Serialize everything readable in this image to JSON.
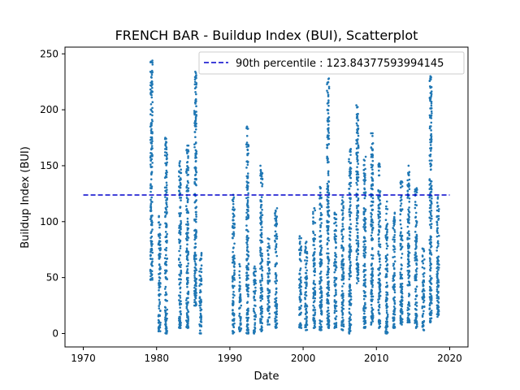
{
  "chart_data": {
    "type": "scatter",
    "title": "FRENCH BAR - Buildup Index (BUI), Scatterplot",
    "xlabel": "Date",
    "ylabel": "Buildup Index (BUI)",
    "xlim": [
      1967.5,
      2022.5
    ],
    "ylim": [
      -12,
      256
    ],
    "x_ticks": [
      "1970",
      "1980",
      "1990",
      "2000",
      "2010",
      "2020"
    ],
    "y_ticks": [
      "0",
      "50",
      "100",
      "150",
      "200",
      "250"
    ],
    "grid": false,
    "legend_position": "top-right",
    "reference_line": {
      "label": "90th percentile : 123.84377593994145",
      "value": 123.84377593994145,
      "x_range": [
        1970,
        2020
      ],
      "color": "#0000cc",
      "style": "dashed"
    },
    "series": [
      {
        "color": "#1f77b4",
        "season_ranges": [
          [
            1979.3,
            48,
            244
          ],
          [
            1980.4,
            2,
            105
          ],
          [
            1981.3,
            0,
            175
          ],
          [
            1983.2,
            5,
            154
          ],
          [
            1984.2,
            5,
            168
          ],
          [
            1985.3,
            25,
            234
          ],
          [
            1986.0,
            0,
            72
          ],
          [
            1990.5,
            0,
            124
          ],
          [
            1991.4,
            2,
            62
          ],
          [
            1992.4,
            0,
            185
          ],
          [
            1993.4,
            0,
            60
          ],
          [
            1994.3,
            2,
            150
          ],
          [
            1995.3,
            8,
            85
          ],
          [
            1996.3,
            5,
            112
          ],
          [
            1999.6,
            5,
            87
          ],
          [
            2000.4,
            3,
            82
          ],
          [
            2001.5,
            5,
            112
          ],
          [
            2002.4,
            3,
            131
          ],
          [
            2003.4,
            5,
            228
          ],
          [
            2004.4,
            5,
            108
          ],
          [
            2005.4,
            3,
            122
          ],
          [
            2006.4,
            0,
            165
          ],
          [
            2007.4,
            45,
            204
          ],
          [
            2008.4,
            5,
            158
          ],
          [
            2009.4,
            8,
            179
          ],
          [
            2010.4,
            5,
            152
          ],
          [
            2011.4,
            0,
            118
          ],
          [
            2012.4,
            5,
            108
          ],
          [
            2013.4,
            8,
            136
          ],
          [
            2014.4,
            10,
            150
          ],
          [
            2015.4,
            5,
            130
          ],
          [
            2016.4,
            3,
            76
          ],
          [
            2017.4,
            10,
            230
          ],
          [
            2018.4,
            15,
            122
          ]
        ]
      }
    ]
  }
}
